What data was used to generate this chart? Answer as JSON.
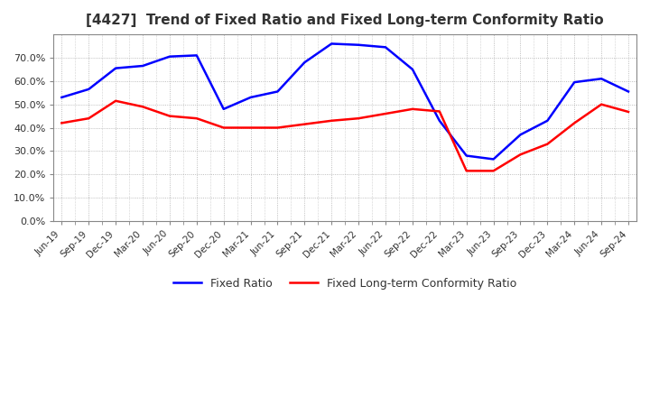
{
  "title": "[4427]  Trend of Fixed Ratio and Fixed Long-term Conformity Ratio",
  "x_labels": [
    "Jun-19",
    "Sep-19",
    "Dec-19",
    "Mar-20",
    "Jun-20",
    "Sep-20",
    "Dec-20",
    "Mar-21",
    "Jun-21",
    "Sep-21",
    "Dec-21",
    "Mar-22",
    "Jun-22",
    "Sep-22",
    "Dec-22",
    "Mar-23",
    "Jun-23",
    "Sep-23",
    "Dec-23",
    "Mar-24",
    "Jun-24",
    "Sep-24"
  ],
  "fixed_ratio": [
    0.53,
    0.565,
    0.655,
    0.665,
    0.705,
    0.71,
    0.48,
    0.53,
    0.555,
    0.68,
    0.76,
    0.755,
    0.745,
    0.65,
    0.43,
    0.28,
    0.265,
    0.37,
    0.43,
    0.595,
    0.61,
    0.555
  ],
  "fixed_lt_ratio": [
    0.42,
    0.44,
    0.515,
    0.49,
    0.45,
    0.44,
    0.4,
    0.4,
    0.4,
    0.415,
    0.43,
    0.44,
    0.46,
    0.48,
    0.47,
    0.215,
    0.215,
    0.285,
    0.33,
    0.42,
    0.5,
    0.468
  ],
  "fixed_ratio_color": "#0000ff",
  "fixed_lt_ratio_color": "#ff0000",
  "ylim": [
    0.0,
    0.8
  ],
  "yticks": [
    0.0,
    0.1,
    0.2,
    0.3,
    0.4,
    0.5,
    0.6,
    0.7
  ],
  "background_color": "#ffffff",
  "grid_color": "#aaaaaa",
  "legend_labels": [
    "Fixed Ratio",
    "Fixed Long-term Conformity Ratio"
  ]
}
